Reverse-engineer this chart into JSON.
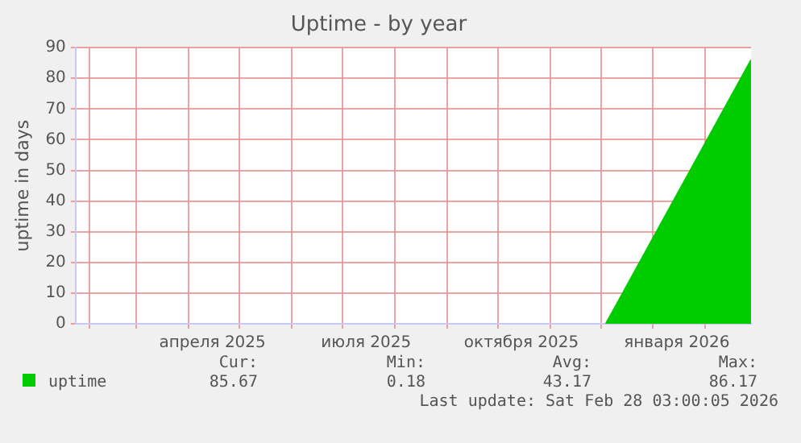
{
  "chart_data": {
    "type": "area",
    "title": "Uptime - by year",
    "ylabel": "uptime in days",
    "x": [
      "2025-12-04",
      "2026-02-28"
    ],
    "series": [
      {
        "name": "uptime",
        "color": "#00cc00",
        "values": [
          0,
          86
        ]
      }
    ],
    "xlim": [
      "2025-01-24",
      "2026-02-28"
    ],
    "xticks": [
      {
        "value": "2025-02-01",
        "label": null
      },
      {
        "value": "2025-03-01",
        "label": null
      },
      {
        "value": "2025-04-01",
        "label": null
      },
      {
        "value": "2025-04-15",
        "label": "апреля 2025"
      },
      {
        "value": "2025-05-01",
        "label": null
      },
      {
        "value": "2025-06-01",
        "label": null
      },
      {
        "value": "2025-07-01",
        "label": null
      },
      {
        "value": "2025-07-15",
        "label": "июля 2025"
      },
      {
        "value": "2025-08-01",
        "label": null
      },
      {
        "value": "2025-09-01",
        "label": null
      },
      {
        "value": "2025-10-01",
        "label": null
      },
      {
        "value": "2025-10-15",
        "label": "октября 2025"
      },
      {
        "value": "2025-11-01",
        "label": null
      },
      {
        "value": "2025-12-01",
        "label": null
      },
      {
        "value": "2026-01-01",
        "label": null
      },
      {
        "value": "2026-01-15",
        "label": "января 2026"
      },
      {
        "value": "2026-02-01",
        "label": null
      }
    ],
    "ylim": [
      0,
      90
    ],
    "yticks": [
      0,
      10,
      20,
      30,
      40,
      50,
      60,
      70,
      80,
      90
    ],
    "grid": true,
    "legend": "bottom left",
    "annotations": [
      "Cur:",
      "Min:",
      "Avg:",
      "Max:",
      "85.67",
      "0.18",
      "43.17",
      "86.17",
      "Last update: Sat Feb 28 03:00:05 2026"
    ]
  }
}
